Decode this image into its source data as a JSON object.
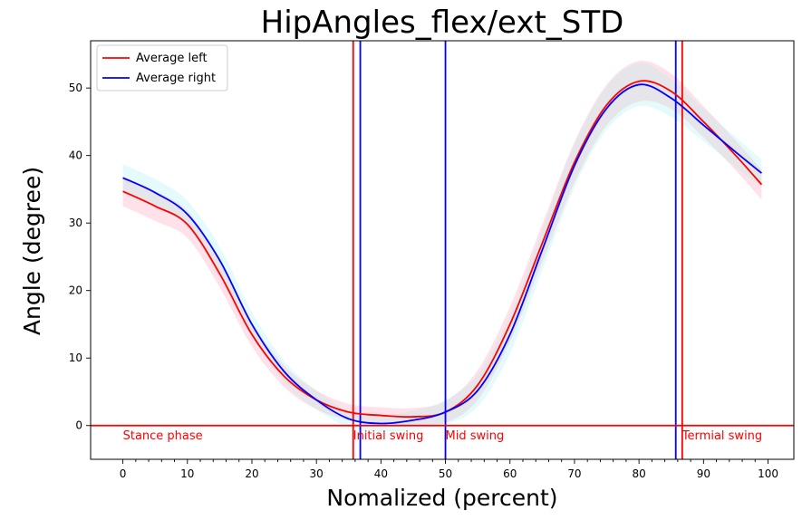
{
  "chart_data": {
    "type": "line",
    "title": "HipAngles_flex/ext_STD",
    "xlabel": "Nomalized (percent)",
    "ylabel": "Angle (degree)",
    "xlim": [
      -5,
      104
    ],
    "ylim": [
      -5,
      57
    ],
    "xticks": [
      0,
      10,
      20,
      30,
      40,
      50,
      60,
      70,
      80,
      90,
      100
    ],
    "yticks": [
      0,
      10,
      20,
      30,
      40,
      50
    ],
    "grid": false,
    "legend_position": "top-left",
    "series": [
      {
        "name": "Average left",
        "color": "#ff0000",
        "band_color": "#ff9db5",
        "x": [
          0,
          5,
          10,
          15,
          20,
          25,
          30,
          35,
          40,
          45,
          50,
          55,
          60,
          65,
          70,
          75,
          80,
          85,
          90,
          95,
          99
        ],
        "y": [
          34.7,
          32.5,
          29.8,
          22.5,
          13.5,
          7.3,
          3.8,
          2.0,
          1.5,
          1.3,
          2.0,
          6.0,
          15.0,
          27.0,
          39.0,
          47.5,
          51.0,
          49.5,
          45.0,
          40.0,
          35.7
        ],
        "std": [
          2.2,
          2.2,
          2.0,
          2.0,
          1.8,
          1.6,
          1.4,
          1.2,
          1.2,
          1.3,
          1.6,
          2.2,
          2.6,
          2.8,
          3.0,
          3.0,
          3.0,
          2.6,
          2.3,
          2.2,
          2.2
        ]
      },
      {
        "name": "Average right",
        "color": "#0000ff",
        "band_color": "#a8f0f0",
        "x": [
          0,
          5,
          10,
          15,
          20,
          25,
          30,
          35,
          40,
          45,
          50,
          55,
          60,
          65,
          70,
          75,
          80,
          85,
          90,
          95,
          99
        ],
        "y": [
          36.7,
          34.5,
          31.3,
          24.5,
          15.0,
          8.0,
          3.8,
          1.0,
          0.3,
          0.8,
          2.0,
          5.2,
          13.5,
          26.0,
          38.5,
          47.0,
          50.5,
          48.5,
          44.5,
          40.5,
          37.4
        ],
        "std": [
          2.0,
          2.0,
          2.0,
          2.0,
          1.8,
          1.6,
          1.4,
          1.2,
          1.2,
          1.4,
          1.8,
          2.4,
          2.8,
          3.0,
          3.2,
          3.2,
          3.2,
          2.8,
          2.4,
          2.2,
          2.0
        ]
      }
    ],
    "vertical_lines": [
      {
        "x": 35.7,
        "color": "#ff0000"
      },
      {
        "x": 36.8,
        "color": "#0000ff"
      },
      {
        "x": 50.0,
        "color": "#0000ff"
      },
      {
        "x": 85.7,
        "color": "#0000ff"
      },
      {
        "x": 86.7,
        "color": "#ff0000"
      }
    ],
    "horizontal_lines": [
      {
        "y": 0,
        "color": "#ff0000"
      }
    ],
    "annotations": [
      {
        "text": "Stance phase",
        "x": 0,
        "y": -1.5,
        "color": "#ff0000"
      },
      {
        "text": "Initial swing",
        "x": 35.7,
        "y": -1.5,
        "color": "#ff0000"
      },
      {
        "text": "Mid swing",
        "x": 50.0,
        "y": -1.5,
        "color": "#ff0000"
      },
      {
        "text": "Termial swing",
        "x": 86.7,
        "y": -1.5,
        "color": "#ff0000"
      }
    ]
  }
}
